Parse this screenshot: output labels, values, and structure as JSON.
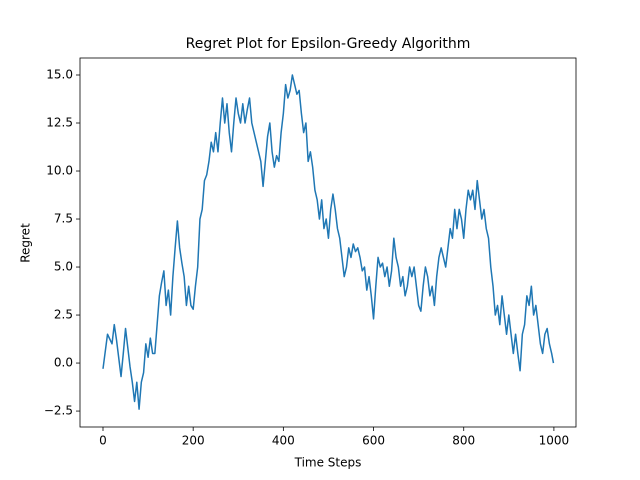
{
  "chart_data": {
    "type": "line",
    "title": "Regret Plot for Epsilon-Greedy Algorithm",
    "x_label": "Time Steps",
    "y_label": "Regret",
    "x": [
      0,
      10,
      20,
      25,
      30,
      40,
      45,
      50,
      55,
      60,
      65,
      70,
      75,
      80,
      85,
      90,
      95,
      100,
      105,
      110,
      115,
      120,
      125,
      130,
      135,
      140,
      145,
      150,
      155,
      160,
      165,
      170,
      175,
      180,
      185,
      190,
      195,
      200,
      205,
      210,
      215,
      220,
      225,
      230,
      235,
      240,
      245,
      250,
      255,
      260,
      265,
      270,
      275,
      280,
      285,
      290,
      295,
      300,
      305,
      310,
      315,
      320,
      325,
      330,
      340,
      350,
      355,
      360,
      365,
      370,
      375,
      380,
      385,
      390,
      395,
      400,
      405,
      410,
      415,
      420,
      425,
      430,
      435,
      440,
      445,
      450,
      455,
      460,
      465,
      470,
      475,
      480,
      485,
      490,
      495,
      500,
      505,
      510,
      515,
      520,
      525,
      530,
      535,
      540,
      545,
      550,
      555,
      560,
      565,
      570,
      575,
      580,
      585,
      590,
      595,
      600,
      605,
      610,
      615,
      620,
      625,
      630,
      635,
      640,
      645,
      650,
      655,
      660,
      665,
      670,
      675,
      680,
      685,
      690,
      695,
      700,
      705,
      710,
      715,
      720,
      725,
      730,
      735,
      740,
      745,
      750,
      755,
      760,
      765,
      770,
      775,
      780,
      785,
      790,
      795,
      800,
      805,
      810,
      815,
      820,
      825,
      830,
      835,
      840,
      845,
      850,
      855,
      860,
      865,
      870,
      875,
      880,
      885,
      890,
      895,
      900,
      905,
      910,
      915,
      920,
      925,
      930,
      935,
      940,
      945,
      950,
      955,
      960,
      965,
      970,
      975,
      980,
      985,
      990,
      995,
      999
    ],
    "series": [
      {
        "color": "#1f77b4",
        "values": [
          -0.3,
          1.5,
          1.0,
          2.0,
          1.2,
          -0.7,
          0.5,
          1.8,
          0.8,
          -0.2,
          -1.0,
          -2.0,
          -1.0,
          -2.4,
          -1.0,
          -0.5,
          1.0,
          0.3,
          1.3,
          0.5,
          0.5,
          2.0,
          3.5,
          4.2,
          4.8,
          3.0,
          3.8,
          2.5,
          4.5,
          6.0,
          7.4,
          6.0,
          5.2,
          4.5,
          3.0,
          4.0,
          3.0,
          2.8,
          4.0,
          5.0,
          7.5,
          8.0,
          9.5,
          9.8,
          10.5,
          11.5,
          11.0,
          12.0,
          11.0,
          12.5,
          13.8,
          12.5,
          13.5,
          12.0,
          11.0,
          12.5,
          13.8,
          13.0,
          12.5,
          13.5,
          12.5,
          13.2,
          13.8,
          12.5,
          11.5,
          10.5,
          9.2,
          10.5,
          11.8,
          12.5,
          11.0,
          10.2,
          10.8,
          10.5,
          12.0,
          13.0,
          14.5,
          13.8,
          14.2,
          15.0,
          14.5,
          14.0,
          14.2,
          13.0,
          12.0,
          12.5,
          10.5,
          11.0,
          10.2,
          9.0,
          8.5,
          7.5,
          8.5,
          7.0,
          7.5,
          6.5,
          8.0,
          8.8,
          8.0,
          7.0,
          6.5,
          5.5,
          4.5,
          5.0,
          6.0,
          5.5,
          6.2,
          5.8,
          6.0,
          5.5,
          4.8,
          5.0,
          3.8,
          4.5,
          3.5,
          2.3,
          4.0,
          5.5,
          5.0,
          5.2,
          4.5,
          5.0,
          4.0,
          4.8,
          6.5,
          5.5,
          5.0,
          4.0,
          4.5,
          3.5,
          4.0,
          5.0,
          4.5,
          5.0,
          4.0,
          3.0,
          2.7,
          4.0,
          5.0,
          4.5,
          3.5,
          4.0,
          3.0,
          4.5,
          5.5,
          6.0,
          5.5,
          5.0,
          6.0,
          7.0,
          6.5,
          8.0,
          7.0,
          8.0,
          7.5,
          6.5,
          8.0,
          9.0,
          8.5,
          9.0,
          8.0,
          9.5,
          8.5,
          7.5,
          8.0,
          7.0,
          6.5,
          5.0,
          4.0,
          2.5,
          3.0,
          2.0,
          3.5,
          2.5,
          1.5,
          2.5,
          1.5,
          0.5,
          1.5,
          0.5,
          -0.4,
          1.5,
          2.0,
          3.5,
          3.0,
          4.0,
          2.5,
          3.0,
          2.0,
          1.0,
          0.5,
          1.5,
          1.8,
          1.0,
          0.5,
          0.0
        ]
      }
    ],
    "xlim": [
      -51,
      1049
    ],
    "ylim": [
      -3.33,
      15.885
    ],
    "xticks": [
      0,
      200,
      400,
      600,
      800,
      1000
    ],
    "yticks": [
      {
        "value": -2.5,
        "label": "−2.5"
      },
      {
        "value": 0,
        "label": "0.0"
      },
      {
        "value": 2.5,
        "label": "2.5"
      },
      {
        "value": 5,
        "label": "5.0"
      },
      {
        "value": 7.5,
        "label": "7.5"
      },
      {
        "value": 10,
        "label": "10.0"
      },
      {
        "value": 12.5,
        "label": "12.5"
      },
      {
        "value": 15,
        "label": "15.0"
      }
    ]
  }
}
